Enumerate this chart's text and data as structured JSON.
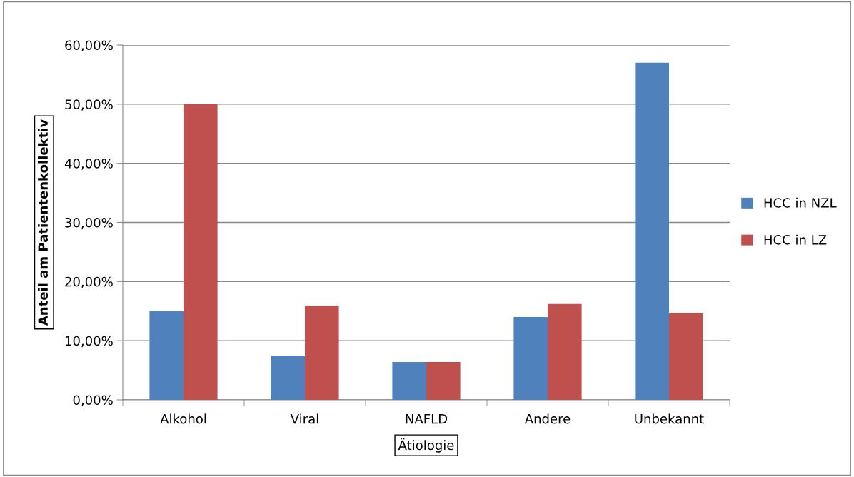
{
  "chart_data": {
    "type": "bar",
    "xlabel": "Ätiologie",
    "ylabel": "Anteil am Patientenkollektiv",
    "categories": [
      "Alkohol",
      "Viral",
      "NAFLD",
      "Andere",
      "Unbekannt"
    ],
    "series": [
      {
        "name": "HCC in NZL",
        "color": "#4f81bd",
        "values": [
          15.0,
          7.5,
          6.4,
          14.0,
          57.0
        ]
      },
      {
        "name": "HCC in LZ",
        "color": "#c0504d",
        "values": [
          50.0,
          15.9,
          6.4,
          16.2,
          14.7
        ]
      }
    ],
    "ylim": [
      0,
      60
    ],
    "yticks": [
      {
        "value": 0,
        "label": "0,00%"
      },
      {
        "value": 10,
        "label": "10,00%"
      },
      {
        "value": 20,
        "label": "20,00%"
      },
      {
        "value": 30,
        "label": "30,00%"
      },
      {
        "value": 40,
        "label": "40,00%"
      },
      {
        "value": 50,
        "label": "50,00%"
      },
      {
        "value": 60,
        "label": "60,00%"
      }
    ],
    "grid": "y",
    "legend": "right"
  }
}
